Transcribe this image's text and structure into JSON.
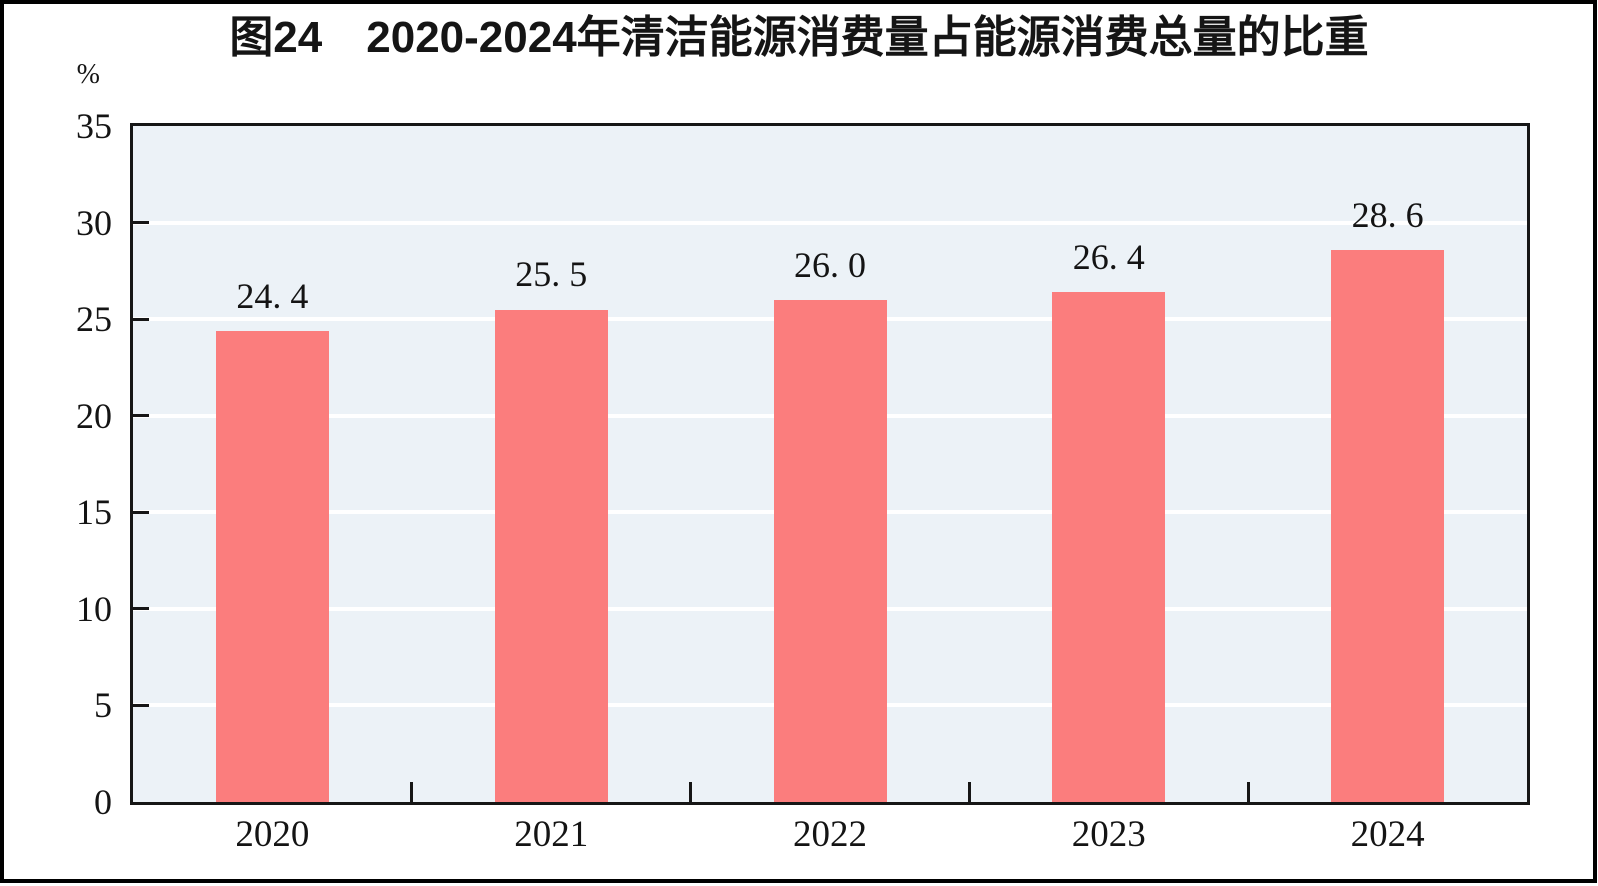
{
  "figure": {
    "frame_color": "#000000",
    "background_color": "#ffffff"
  },
  "chart_data": {
    "type": "bar",
    "title": "图24　2020-2024年清洁能源消费量占能源消费总量的比重",
    "unit_label": "%",
    "categories": [
      "2020",
      "2021",
      "2022",
      "2023",
      "2024"
    ],
    "values": [
      24.4,
      25.5,
      26.0,
      26.4,
      28.6
    ],
    "value_labels": [
      "24. 4",
      "25. 5",
      "26. 0",
      "26. 4",
      "28. 6"
    ],
    "series_name": "清洁能源消费量占能源消费总量的比重",
    "xlabel": "",
    "ylabel": "%",
    "ylim": [
      0,
      35
    ],
    "yticks": [
      0,
      5,
      10,
      15,
      20,
      25,
      30,
      35
    ],
    "grid": true,
    "gridline_color": "#ffffff",
    "legend_position": "none",
    "bar_color": "#FB7D7D",
    "plot_bg_color": "#ECF2F7",
    "axis_color": "#161616",
    "text_color": "#141414"
  }
}
